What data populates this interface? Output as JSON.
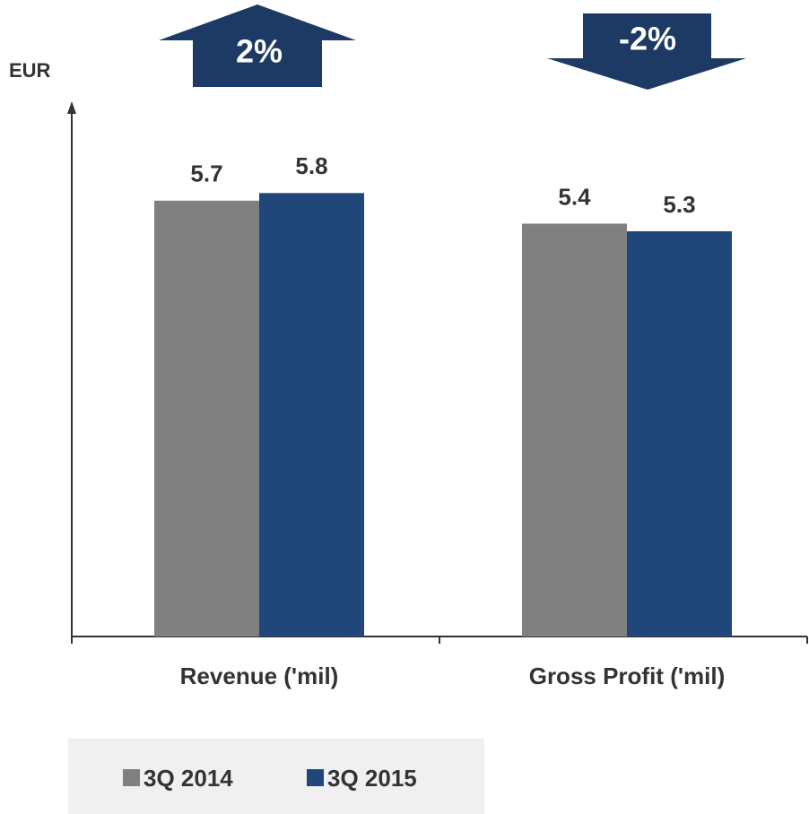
{
  "chart_data": {
    "type": "bar",
    "y_axis_label": "EUR",
    "categories": [
      "Revenue ('mil)",
      "Gross Profit ('mil)"
    ],
    "series": [
      {
        "name": "3Q 2014",
        "color": "#808080",
        "values": [
          5.7,
          5.4
        ]
      },
      {
        "name": "3Q 2015",
        "color": "#21477a",
        "values": [
          5.8,
          5.3
        ]
      }
    ],
    "ylim": [
      0,
      7
    ],
    "annotations": [
      {
        "text": "2%",
        "direction": "up",
        "color": "#1c3a63"
      },
      {
        "text": "-2%",
        "direction": "down",
        "color": "#1c3a63"
      }
    ],
    "legend": "bottom-left"
  }
}
